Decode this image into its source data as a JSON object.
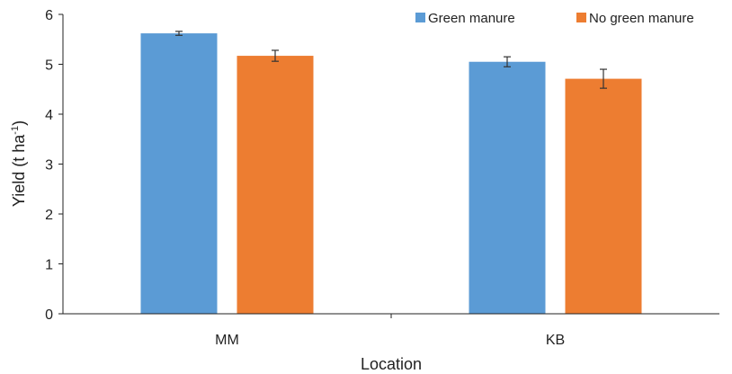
{
  "chart_data": {
    "type": "bar",
    "categories": [
      "MM",
      "KB"
    ],
    "series": [
      {
        "name": "Green manure",
        "color": "#5b9bd5",
        "values": [
          5.62,
          5.05
        ],
        "errors": [
          0.04,
          0.1
        ]
      },
      {
        "name": "No green manure",
        "color": "#ed7d31",
        "values": [
          5.17,
          4.71
        ],
        "errors": [
          0.11,
          0.19
        ]
      }
    ],
    "xlabel": "Location",
    "ylabel_main": "Yield (t ha",
    "ylabel_sup": "-1",
    "ylabel_close": ")",
    "ylim": [
      0,
      6
    ],
    "yticks": [
      "0",
      "1",
      "2",
      "3",
      "4",
      "5",
      "6"
    ],
    "grid": false,
    "legend_position": "top-right"
  }
}
